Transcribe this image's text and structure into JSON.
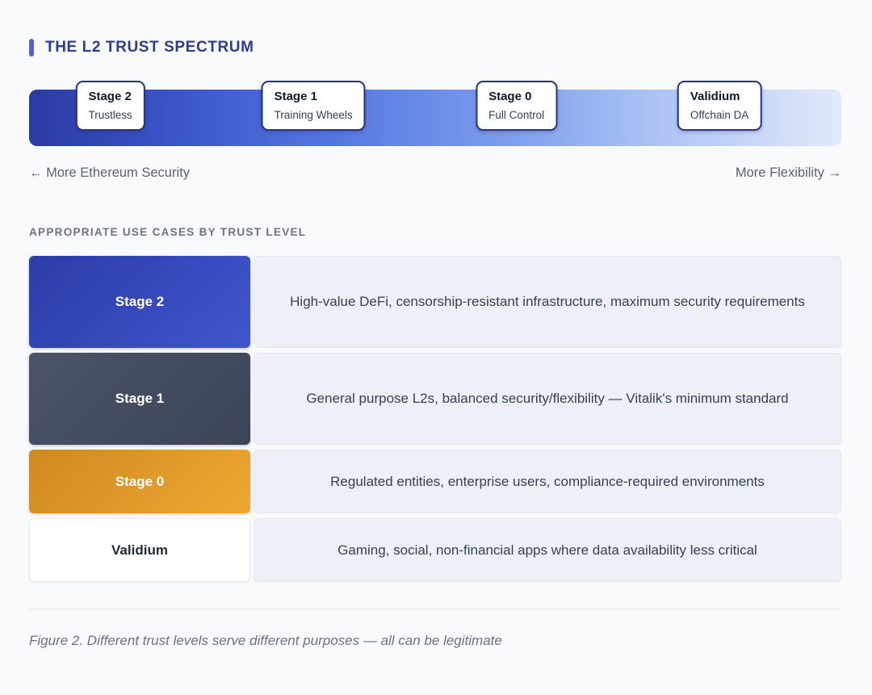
{
  "page": {
    "title": "THE L2 TRUST SPECTRUM",
    "section_heading": "APPROPRIATE USE CASES BY TRUST LEVEL",
    "caption": "Figure 2. Different trust levels serve different purposes — all can be legitimate",
    "accent_color": "#4f63d8",
    "title_color": "#2e3c92"
  },
  "spectrum": {
    "gradient_start_color": "#2b3aa2",
    "gradient_end_color": "#e2e9fb",
    "left_axis_label": "← More Ethereum Security",
    "right_axis_label": "More Flexibility →",
    "stops": [
      {
        "label": "Stage 2",
        "sublabel": "Trustless"
      },
      {
        "label": "Stage 1",
        "sublabel": "Training Wheels"
      },
      {
        "label": "Stage 0",
        "sublabel": "Full Control"
      },
      {
        "label": "Validium",
        "sublabel": "Offchain DA"
      }
    ]
  },
  "use_cases": {
    "rows": [
      {
        "stage": "Stage 2",
        "description": "High-value DeFi, censorship-resistant infrastructure, maximum security requirements",
        "label_color": "#3449bb",
        "label_text_color": "#ffffff"
      },
      {
        "stage": "Stage 1",
        "description": "General purpose L2s, balanced security/flexibility — Vitalik's minimum standard",
        "label_color": "#454e61",
        "label_text_color": "#ffffff"
      },
      {
        "stage": "Stage 0",
        "description": "Regulated entities, enterprise users, compliance-required environments",
        "label_color": "#de9928",
        "label_text_color": "#ffffff"
      },
      {
        "stage": "Validium",
        "description": "Gaming, social, non-financial apps where data availability less critical",
        "label_color": "#ffffff",
        "label_text_color": "#1f2937"
      }
    ]
  }
}
